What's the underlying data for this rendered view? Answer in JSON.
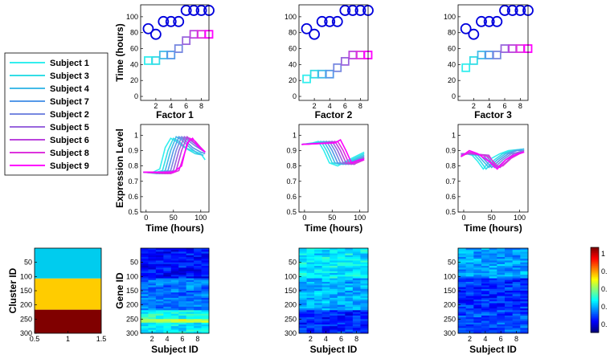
{
  "colors": {
    "subjects": [
      "#33eeee",
      "#33dde6",
      "#44bbe8",
      "#5599e8",
      "#7788e0",
      "#9966dd",
      "#bb44dd",
      "#dd33dd",
      "#ff00ff"
    ],
    "circle": "#0000dd",
    "cluster": [
      "#00ccee",
      "#ffcc00",
      "#800000"
    ]
  },
  "legend": {
    "placement": "left",
    "entries": [
      "Subject 1",
      "Subject 3",
      "Subject 4",
      "Subject 7",
      "Subject 2",
      "Subject 5",
      "Subject 6",
      "Subject 8",
      "Subject 9"
    ]
  },
  "labels": {
    "time_hours": "Time (hours)",
    "expression_level": "Expression Level",
    "cluster_id": "Cluster ID",
    "gene_id": "Gene ID",
    "subject_id": "Subject ID"
  },
  "colorbar": {
    "colormap": "jet",
    "ticks": [
      "1",
      "0.",
      "0.",
      "0.",
      "0."
    ]
  },
  "chart_data": [
    {
      "type": "scatter",
      "panel": "top-1",
      "ylabel": "Time (hours)",
      "xlim": [
        0,
        9
      ],
      "ylim": [
        -5,
        115
      ],
      "xticks": [
        "2",
        "4",
        "6",
        "8"
      ],
      "yticks": [
        "0",
        "20",
        "40",
        "60",
        "80",
        "100"
      ],
      "x": [
        1,
        2,
        3,
        4,
        5,
        6,
        7,
        8,
        9
      ],
      "series": [
        {
          "marker": "circle",
          "values": [
            85,
            78,
            94,
            94,
            94,
            108,
            108,
            108,
            108
          ]
        },
        {
          "marker": "square",
          "values": [
            45,
            45,
            52,
            52,
            60,
            70,
            78,
            78,
            78
          ]
        }
      ]
    },
    {
      "type": "scatter",
      "panel": "top-2",
      "xlim": [
        0,
        9
      ],
      "ylim": [
        -5,
        115
      ],
      "xticks": [
        "2",
        "4",
        "6",
        "8"
      ],
      "yticks": [
        "0",
        "20",
        "40",
        "60",
        "80",
        "100"
      ],
      "x": [
        1,
        2,
        3,
        4,
        5,
        6,
        7,
        8,
        9
      ],
      "series": [
        {
          "marker": "circle",
          "values": [
            85,
            78,
            94,
            94,
            94,
            108,
            108,
            108,
            108
          ]
        },
        {
          "marker": "square",
          "values": [
            22,
            28,
            28,
            28,
            36,
            44,
            52,
            52,
            52
          ]
        }
      ]
    },
    {
      "type": "scatter",
      "panel": "top-3",
      "xlim": [
        0,
        9
      ],
      "ylim": [
        -5,
        115
      ],
      "xticks": [
        "2",
        "4",
        "6",
        "8"
      ],
      "yticks": [
        "0",
        "20",
        "40",
        "60",
        "80",
        "100"
      ],
      "x": [
        1,
        2,
        3,
        4,
        5,
        6,
        7,
        8,
        9
      ],
      "series": [
        {
          "marker": "circle",
          "values": [
            85,
            78,
            94,
            94,
            94,
            108,
            108,
            108,
            108
          ]
        },
        {
          "marker": "square",
          "values": [
            36,
            45,
            52,
            52,
            52,
            60,
            60,
            60,
            60
          ]
        }
      ]
    },
    {
      "type": "line",
      "panel": "mid-1",
      "title": "Factor 1",
      "xlabel": "Time (hours)",
      "ylabel": "Expression Level",
      "xlim": [
        -10,
        115
      ],
      "ylim": [
        0.5,
        1.07
      ],
      "xticks": [
        "0",
        "50",
        "100"
      ],
      "yticks": [
        "0.5",
        "0.6",
        "0.7",
        "0.8",
        "0.9",
        "1"
      ],
      "series": [
        {
          "name": "Subject 1",
          "x": [
            -5,
            10,
            25,
            35,
            45,
            55,
            70,
            85,
            100,
            108
          ],
          "values": [
            0.76,
            0.755,
            0.78,
            0.92,
            0.98,
            0.96,
            0.92,
            0.9,
            0.88,
            0.84
          ]
        },
        {
          "name": "Subject 3",
          "x": [
            -5,
            15,
            30,
            40,
            50,
            60,
            75,
            90,
            105
          ],
          "values": [
            0.76,
            0.755,
            0.77,
            0.9,
            0.98,
            0.96,
            0.91,
            0.88,
            0.87
          ]
        },
        {
          "name": "Subject 4",
          "x": [
            -5,
            20,
            35,
            45,
            55,
            65,
            80,
            95,
            105
          ],
          "values": [
            0.76,
            0.75,
            0.77,
            0.9,
            0.99,
            0.97,
            0.92,
            0.88,
            0.87
          ]
        },
        {
          "name": "Subject 7",
          "x": [
            -5,
            25,
            40,
            50,
            60,
            70,
            85,
            100,
            108
          ],
          "values": [
            0.76,
            0.75,
            0.77,
            0.9,
            0.99,
            0.97,
            0.92,
            0.89,
            0.88
          ]
        },
        {
          "name": "Subject 2",
          "x": [
            -5,
            30,
            45,
            55,
            65,
            75,
            90,
            108
          ],
          "values": [
            0.76,
            0.75,
            0.77,
            0.9,
            0.99,
            0.97,
            0.93,
            0.89
          ]
        },
        {
          "name": "Subject 5",
          "x": [
            -5,
            35,
            50,
            60,
            70,
            80,
            95,
            108
          ],
          "values": [
            0.76,
            0.75,
            0.77,
            0.9,
            0.99,
            0.97,
            0.93,
            0.89
          ]
        },
        {
          "name": "Subject 6",
          "x": [
            -5,
            40,
            55,
            65,
            75,
            85,
            100,
            108
          ],
          "values": [
            0.76,
            0.75,
            0.77,
            0.9,
            0.99,
            0.96,
            0.91,
            0.89
          ]
        },
        {
          "name": "Subject 8",
          "x": [
            -5,
            45,
            60,
            70,
            80,
            90,
            100,
            108
          ],
          "values": [
            0.76,
            0.75,
            0.77,
            0.88,
            0.98,
            0.96,
            0.92,
            0.89
          ]
        },
        {
          "name": "Subject 9",
          "x": [
            -5,
            50,
            65,
            75,
            85,
            95,
            105,
            108
          ],
          "values": [
            0.76,
            0.76,
            0.8,
            0.95,
            0.98,
            0.93,
            0.9,
            0.89
          ]
        }
      ]
    },
    {
      "type": "line",
      "panel": "mid-2",
      "title": "Factor 2",
      "xlabel": "Time (hours)",
      "xlim": [
        -10,
        115
      ],
      "ylim": [
        0.5,
        1.07
      ],
      "xticks": [
        "0",
        "50",
        "100"
      ],
      "yticks": [
        "0.5",
        "0.6",
        "0.7",
        "0.8",
        "0.9",
        "1"
      ],
      "series": [
        {
          "name": "Subject 1",
          "x": [
            -5,
            15,
            25,
            35,
            45,
            60,
            80,
            108
          ],
          "values": [
            0.94,
            0.95,
            0.96,
            0.9,
            0.82,
            0.8,
            0.84,
            0.89
          ]
        },
        {
          "name": "Subject 3",
          "x": [
            -5,
            20,
            30,
            40,
            50,
            65,
            85,
            108
          ],
          "values": [
            0.94,
            0.95,
            0.96,
            0.9,
            0.82,
            0.81,
            0.84,
            0.88
          ]
        },
        {
          "name": "Subject 4",
          "x": [
            -5,
            25,
            35,
            45,
            55,
            70,
            90,
            108
          ],
          "values": [
            0.94,
            0.95,
            0.96,
            0.9,
            0.82,
            0.81,
            0.84,
            0.87
          ]
        },
        {
          "name": "Subject 7",
          "x": [
            -5,
            30,
            40,
            50,
            60,
            75,
            95,
            108
          ],
          "values": [
            0.94,
            0.95,
            0.96,
            0.9,
            0.82,
            0.81,
            0.84,
            0.86
          ]
        },
        {
          "name": "Subject 2",
          "x": [
            -5,
            35,
            45,
            55,
            65,
            80,
            100,
            108
          ],
          "values": [
            0.94,
            0.95,
            0.96,
            0.9,
            0.82,
            0.81,
            0.84,
            0.86
          ]
        },
        {
          "name": "Subject 5",
          "x": [
            -5,
            40,
            50,
            60,
            70,
            85,
            100,
            108
          ],
          "values": [
            0.94,
            0.95,
            0.96,
            0.9,
            0.82,
            0.81,
            0.84,
            0.85
          ]
        },
        {
          "name": "Subject 6",
          "x": [
            -5,
            45,
            55,
            65,
            75,
            90,
            108
          ],
          "values": [
            0.94,
            0.95,
            0.96,
            0.9,
            0.82,
            0.81,
            0.85
          ]
        },
        {
          "name": "Subject 8",
          "x": [
            -5,
            50,
            60,
            70,
            80,
            95,
            108
          ],
          "values": [
            0.94,
            0.95,
            0.96,
            0.9,
            0.82,
            0.82,
            0.84
          ]
        },
        {
          "name": "Subject 9",
          "x": [
            -5,
            55,
            65,
            75,
            85,
            100,
            108
          ],
          "values": [
            0.94,
            0.95,
            0.97,
            0.9,
            0.82,
            0.84,
            0.84
          ]
        }
      ]
    },
    {
      "type": "line",
      "panel": "mid-3",
      "title": "Factor 3",
      "xlabel": "Time (hours)",
      "xlim": [
        -10,
        115
      ],
      "ylim": [
        0.5,
        1.07
      ],
      "xticks": [
        "0",
        "50",
        "100"
      ],
      "yticks": [
        "0.5",
        "0.6",
        "0.7",
        "0.8",
        "0.9",
        "1"
      ],
      "series": [
        {
          "name": "Subject 1",
          "x": [
            -5,
            5,
            15,
            25,
            35,
            50,
            65,
            80,
            108
          ],
          "values": [
            0.88,
            0.88,
            0.87,
            0.83,
            0.78,
            0.85,
            0.88,
            0.9,
            0.91
          ]
        },
        {
          "name": "Subject 3",
          "x": [
            -5,
            5,
            20,
            30,
            40,
            55,
            70,
            85,
            108
          ],
          "values": [
            0.88,
            0.88,
            0.87,
            0.83,
            0.78,
            0.84,
            0.88,
            0.9,
            0.91
          ]
        },
        {
          "name": "Subject 4",
          "x": [
            -5,
            10,
            25,
            35,
            45,
            60,
            75,
            90,
            108
          ],
          "values": [
            0.88,
            0.88,
            0.87,
            0.83,
            0.79,
            0.84,
            0.88,
            0.9,
            0.91
          ]
        },
        {
          "name": "Subject 7",
          "x": [
            -5,
            10,
            30,
            40,
            50,
            65,
            80,
            95,
            108
          ],
          "values": [
            0.88,
            0.88,
            0.87,
            0.83,
            0.79,
            0.84,
            0.88,
            0.9,
            0.9
          ]
        },
        {
          "name": "Subject 2",
          "x": [
            -5,
            10,
            35,
            45,
            55,
            70,
            85,
            100,
            108
          ],
          "values": [
            0.88,
            0.88,
            0.87,
            0.83,
            0.79,
            0.84,
            0.88,
            0.89,
            0.9
          ]
        },
        {
          "name": "Subject 5",
          "x": [
            -5,
            10,
            40,
            50,
            60,
            75,
            90,
            108
          ],
          "values": [
            0.88,
            0.88,
            0.87,
            0.82,
            0.79,
            0.84,
            0.88,
            0.9
          ]
        },
        {
          "name": "Subject 6",
          "x": [
            -5,
            10,
            45,
            55,
            65,
            80,
            95,
            108
          ],
          "values": [
            0.87,
            0.88,
            0.87,
            0.81,
            0.79,
            0.84,
            0.88,
            0.89
          ]
        },
        {
          "name": "Subject 8",
          "x": [
            -5,
            10,
            45,
            60,
            70,
            85,
            100,
            108
          ],
          "values": [
            0.86,
            0.89,
            0.86,
            0.8,
            0.8,
            0.85,
            0.88,
            0.89
          ]
        },
        {
          "name": "Subject 9",
          "x": [
            -5,
            10,
            25,
            45,
            60,
            75,
            90,
            108
          ],
          "values": [
            0.86,
            0.9,
            0.88,
            0.83,
            0.78,
            0.84,
            0.87,
            0.89
          ]
        }
      ]
    },
    {
      "type": "heatmap",
      "panel": "bot-0",
      "xlabel": "",
      "ylabel": "Cluster ID",
      "xlim": [
        0.5,
        1.5
      ],
      "ylim": [
        0,
        300
      ],
      "yreversed": true,
      "xticks": [
        "0.5",
        "1",
        "1.5"
      ],
      "yticks": [
        "50",
        "100",
        "150",
        "200",
        "250",
        "300"
      ],
      "bands": [
        {
          "from": 0,
          "to": 107,
          "color": "#00ccee"
        },
        {
          "from": 107,
          "to": 217,
          "color": "#ffcc00"
        },
        {
          "from": 217,
          "to": 300,
          "color": "#800000"
        }
      ]
    },
    {
      "type": "heatmap",
      "panel": "bot-1",
      "xlabel": "Subject ID",
      "ylabel": "Gene ID",
      "xlim": [
        0.5,
        9.5
      ],
      "ylim": [
        0,
        300
      ],
      "yreversed": true,
      "xticks": [
        "2",
        "4",
        "6",
        "8"
      ],
      "yticks": [
        "50",
        "100",
        "150",
        "200",
        "250",
        "300"
      ],
      "bands": [
        {
          "from": 0,
          "to": 107,
          "level": 0.14
        },
        {
          "from": 107,
          "to": 217,
          "level": 0.24
        },
        {
          "from": 217,
          "to": 250,
          "level": 0.4
        },
        {
          "from": 250,
          "to": 265,
          "level": 0.58
        },
        {
          "from": 265,
          "to": 300,
          "level": 0.36
        }
      ]
    },
    {
      "type": "heatmap",
      "panel": "bot-2",
      "xlabel": "Subject ID",
      "xlim": [
        0.5,
        9.5
      ],
      "ylim": [
        0,
        300
      ],
      "yreversed": true,
      "xticks": [
        "2",
        "4",
        "6",
        "8"
      ],
      "yticks": [
        "50",
        "100",
        "150",
        "200",
        "250",
        "300"
      ],
      "bands": [
        {
          "from": 0,
          "to": 107,
          "level": 0.36
        },
        {
          "from": 107,
          "to": 217,
          "level": 0.3
        },
        {
          "from": 217,
          "to": 300,
          "level": 0.16
        }
      ]
    },
    {
      "type": "heatmap",
      "panel": "bot-3",
      "xlabel": "Subject ID",
      "xlim": [
        0.5,
        9.5
      ],
      "ylim": [
        0,
        300
      ],
      "yreversed": true,
      "xticks": [
        "2",
        "4",
        "6",
        "8"
      ],
      "yticks": [
        "50",
        "100",
        "150",
        "200",
        "250",
        "300"
      ],
      "bands": [
        {
          "from": 0,
          "to": 107,
          "level": 0.28
        },
        {
          "from": 107,
          "to": 217,
          "level": 0.17
        },
        {
          "from": 217,
          "to": 300,
          "level": 0.2
        }
      ]
    }
  ]
}
